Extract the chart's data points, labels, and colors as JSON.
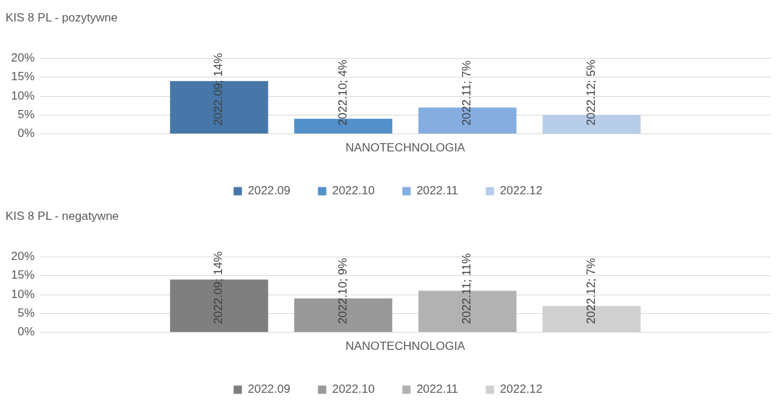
{
  "chart_data": [
    {
      "type": "bar",
      "title": "KIS 8 PL - pozytywne",
      "categories": [
        "NANOTECHNOLOGIA"
      ],
      "series": [
        {
          "name": "2022.09",
          "color": "#4677a8",
          "values": [
            14
          ],
          "value_labels": [
            "2022.09; 14%"
          ]
        },
        {
          "name": "2022.10",
          "color": "#5290c9",
          "values": [
            4
          ],
          "value_labels": [
            "2022.10; 4%"
          ]
        },
        {
          "name": "2022.11",
          "color": "#85ade0",
          "values": [
            7
          ],
          "value_labels": [
            "2022.11; 7%"
          ]
        },
        {
          "name": "2022.12",
          "color": "#b7cde9",
          "values": [
            5
          ],
          "value_labels": [
            "2022.12; 5%"
          ]
        }
      ],
      "ylim": [
        0,
        20
      ],
      "yticks": [
        {
          "value": 0,
          "label": "0%"
        },
        {
          "value": 5,
          "label": "5%"
        },
        {
          "value": 10,
          "label": "10%"
        },
        {
          "value": 15,
          "label": "15%"
        },
        {
          "value": 20,
          "label": "20%"
        }
      ],
      "grid": "y",
      "legend": "bottom"
    },
    {
      "type": "bar",
      "title": "KIS 8 PL - negatywne",
      "categories": [
        "NANOTECHNOLOGIA"
      ],
      "series": [
        {
          "name": "2022.09",
          "color": "#7f7f7f",
          "values": [
            14
          ],
          "value_labels": [
            "2022.09; 14%"
          ]
        },
        {
          "name": "2022.10",
          "color": "#999999",
          "values": [
            9
          ],
          "value_labels": [
            "2022.10; 9%"
          ]
        },
        {
          "name": "2022.11",
          "color": "#b2b2b2",
          "values": [
            11
          ],
          "value_labels": [
            "2022.11; 11%"
          ]
        },
        {
          "name": "2022.12",
          "color": "#d0d0d0",
          "values": [
            7
          ],
          "value_labels": [
            "2022.12; 7%"
          ]
        }
      ],
      "ylim": [
        0,
        20
      ],
      "yticks": [
        {
          "value": 0,
          "label": "0%"
        },
        {
          "value": 5,
          "label": "5%"
        },
        {
          "value": 10,
          "label": "10%"
        },
        {
          "value": 15,
          "label": "15%"
        },
        {
          "value": 20,
          "label": "20%"
        }
      ],
      "grid": "y",
      "legend": "bottom"
    }
  ]
}
